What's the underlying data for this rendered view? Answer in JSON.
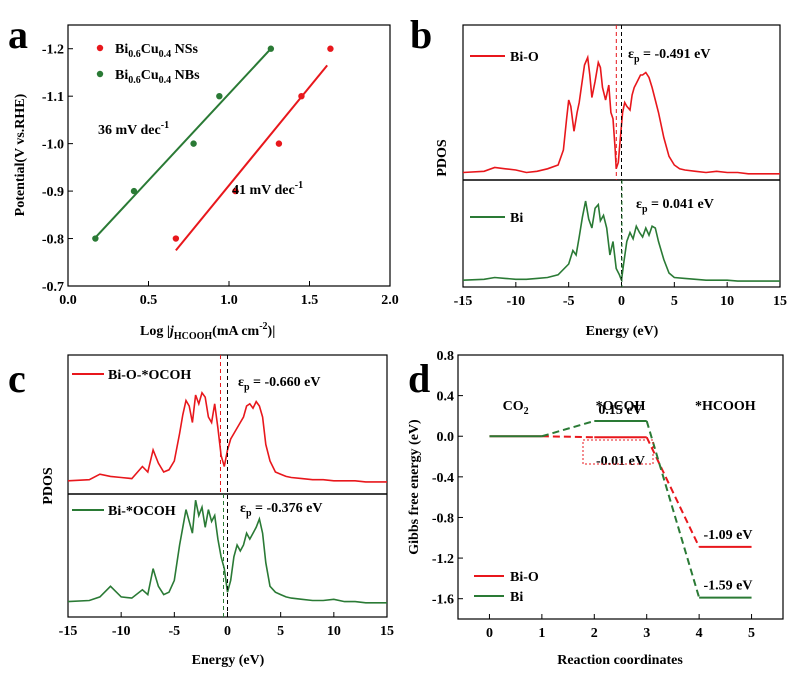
{
  "colors": {
    "red": "#e8171c",
    "green": "#2a7a35",
    "black": "#000000"
  },
  "panels": {
    "a": {
      "letter": "a",
      "chart_data": {
        "type": "scatter",
        "xlabel_prefix": "Log |",
        "xlabel_j": "j",
        "xlabel_sub": "HCOOH",
        "xlabel_units": "(mA cm",
        "xlabel_sup": "-2",
        "xlabel_end": ")|",
        "ylabel": "Potential(V vs.RHE)",
        "xlim": [
          0.0,
          2.0
        ],
        "ylim": [
          -0.7,
          -1.25
        ],
        "xticks": [
          "0.0",
          "0.5",
          "1.0",
          "1.5",
          "2.0"
        ],
        "xtick_values": [
          0.0,
          0.5,
          1.0,
          1.5,
          2.0
        ],
        "yticks": [
          "-1.2",
          "-1.1",
          "-1.0",
          "-0.9",
          "-0.8",
          "-0.7"
        ],
        "ytick_values": [
          -1.2,
          -1.1,
          -1.0,
          -0.9,
          -0.8,
          -0.7
        ],
        "series": [
          {
            "name_main": "Bi",
            "name_sub1": "0.6",
            "name_mid": "Cu",
            "name_sub2": "0.4",
            "name_end": " NSs",
            "color": "red",
            "x": [
              0.67,
              1.04,
              1.31,
              1.45,
              1.63
            ],
            "y": [
              -0.8,
              -0.9,
              -1.0,
              -1.1,
              -1.2
            ],
            "fit": {
              "x": [
                0.67,
                1.61
              ],
              "y": [
                -0.775,
                -1.165
              ]
            },
            "slope_label": "41 mV dec",
            "slope_sup": "-1"
          },
          {
            "name_main": "Bi",
            "name_sub1": "0.6",
            "name_mid": "Cu",
            "name_sub2": "0.4",
            "name_end": " NBs",
            "color": "green",
            "x": [
              0.17,
              0.41,
              0.78,
              0.94,
              1.26
            ],
            "y": [
              -0.8,
              -0.9,
              -1.0,
              -1.1,
              -1.2
            ],
            "fit": {
              "x": [
                0.17,
                1.26
              ],
              "y": [
                -0.802,
                -1.2
              ]
            },
            "slope_label": "36 mV dec",
            "slope_sup": "-1"
          }
        ]
      }
    },
    "b": {
      "letter": "b",
      "chart_data": {
        "type": "line",
        "xlabel": "Energy (eV)",
        "ylabel": "PDOS",
        "xlim": [
          -15,
          15
        ],
        "xticks": [
          "-15",
          "-10",
          "-5",
          "0",
          "5",
          "10",
          "15"
        ],
        "xtick_values": [
          -15,
          -10,
          -5,
          0,
          5,
          10,
          15
        ],
        "series": [
          {
            "name": "Bi-O",
            "color": "red",
            "ep_label": "ε",
            "ep_sub": "p",
            "ep_value": " = -0.491 eV",
            "ep_x": -0.491,
            "x": [
              -15,
              -13,
              -12,
              -11,
              -10,
              -9,
              -8,
              -7,
              -6,
              -5.5,
              -5.2,
              -5,
              -4.8,
              -4.5,
              -4.2,
              -4,
              -3.8,
              -3.5,
              -3.2,
              -3,
              -2.8,
              -2.5,
              -2.2,
              -2,
              -1.8,
              -1.5,
              -1.2,
              -1,
              -0.8,
              -0.6,
              -0.5,
              -0.3,
              -0.1,
              0.1,
              0.3,
              0.5,
              0.8,
              1,
              1.2,
              1.5,
              1.8,
              2,
              2.3,
              2.6,
              2.9,
              3.2,
              3.5,
              4,
              4.5,
              5,
              5.5,
              6,
              7,
              8,
              9,
              10,
              11,
              12,
              13,
              15
            ],
            "y": [
              0.02,
              0.03,
              0.06,
              0.05,
              0.04,
              0.02,
              0.03,
              0.05,
              0.08,
              0.2,
              0.45,
              0.6,
              0.55,
              0.35,
              0.5,
              0.58,
              0.7,
              0.88,
              0.94,
              0.8,
              0.62,
              0.75,
              0.9,
              0.86,
              0.7,
              0.6,
              0.72,
              0.5,
              0.45,
              0.2,
              0.05,
              0.1,
              0.3,
              0.5,
              0.58,
              0.55,
              0.52,
              0.64,
              0.7,
              0.75,
              0.8,
              0.8,
              0.82,
              0.78,
              0.7,
              0.6,
              0.5,
              0.3,
              0.15,
              0.08,
              0.05,
              0.04,
              0.03,
              0.02,
              0.03,
              0.02,
              0.02,
              0.01,
              0.01,
              0.01
            ]
          },
          {
            "name": "Bi",
            "color": "green",
            "ep_label": "ε",
            "ep_sub": "p",
            "ep_value": " = 0.041 eV",
            "ep_x": 0.041,
            "x": [
              -15,
              -13,
              -12,
              -11,
              -10,
              -9,
              -8,
              -7,
              -6,
              -5,
              -4.6,
              -4.3,
              -4,
              -3.7,
              -3.4,
              -3.1,
              -2.8,
              -2.5,
              -2.2,
              -2,
              -1.7,
              -1.4,
              -1.1,
              -0.8,
              -0.5,
              -0.2,
              0,
              0.2,
              0.5,
              0.8,
              1.1,
              1.4,
              1.7,
              2,
              2.3,
              2.6,
              2.9,
              3.2,
              3.5,
              4,
              4.5,
              5,
              6,
              7,
              8,
              9,
              10,
              11,
              12,
              13,
              15
            ],
            "y": [
              0.02,
              0.03,
              0.05,
              0.04,
              0.03,
              0.03,
              0.04,
              0.05,
              0.08,
              0.2,
              0.35,
              0.3,
              0.5,
              0.72,
              0.9,
              0.7,
              0.6,
              0.82,
              0.86,
              0.68,
              0.74,
              0.6,
              0.3,
              0.45,
              0.15,
              0.08,
              0.02,
              0.2,
              0.45,
              0.55,
              0.48,
              0.62,
              0.55,
              0.5,
              0.6,
              0.52,
              0.62,
              0.6,
              0.45,
              0.25,
              0.1,
              0.05,
              0.04,
              0.03,
              0.02,
              0.02,
              0.02,
              0.01,
              0.01,
              0.01,
              0.01
            ]
          }
        ]
      }
    },
    "c": {
      "letter": "c",
      "chart_data": {
        "type": "line",
        "xlabel": "Energy (eV)",
        "ylabel": "PDOS",
        "xlim": [
          -15,
          15
        ],
        "xticks": [
          "-15",
          "-10",
          "-5",
          "0",
          "5",
          "10",
          "15"
        ],
        "xtick_values": [
          -15,
          -10,
          -5,
          0,
          5,
          10,
          15
        ],
        "series": [
          {
            "name": "Bi-O-*OCOH",
            "color": "red",
            "ep_label": "ε",
            "ep_sub": "p",
            "ep_value": " = -0.660 eV",
            "ep_x": -0.66,
            "x": [
              -15,
              -13,
              -12,
              -11,
              -10,
              -9,
              -8,
              -7.5,
              -7,
              -6.5,
              -6,
              -5.5,
              -5,
              -4.5,
              -4.2,
              -3.9,
              -3.6,
              -3.3,
              -3,
              -2.7,
              -2.4,
              -2.1,
              -1.8,
              -1.5,
              -1.2,
              -0.9,
              -0.6,
              -0.3,
              0,
              0.3,
              0.6,
              0.9,
              1.2,
              1.5,
              1.8,
              2.1,
              2.4,
              2.7,
              3,
              3.3,
              3.6,
              4,
              4.5,
              5,
              5.5,
              6,
              7,
              8,
              9,
              10,
              11,
              12,
              13,
              15
            ],
            "y": [
              0.02,
              0.03,
              0.08,
              0.06,
              0.05,
              0.04,
              0.15,
              0.1,
              0.3,
              0.18,
              0.1,
              0.12,
              0.2,
              0.45,
              0.62,
              0.75,
              0.7,
              0.55,
              0.8,
              0.72,
              0.82,
              0.78,
              0.6,
              0.55,
              0.72,
              0.5,
              0.25,
              0.15,
              0.3,
              0.4,
              0.45,
              0.5,
              0.55,
              0.6,
              0.7,
              0.72,
              0.68,
              0.74,
              0.7,
              0.6,
              0.35,
              0.2,
              0.1,
              0.08,
              0.06,
              0.05,
              0.04,
              0.03,
              0.03,
              0.02,
              0.02,
              0.02,
              0.01,
              0.01
            ]
          },
          {
            "name": "Bi-*OCOH",
            "color": "green",
            "ep_label": "ε",
            "ep_sub": "p",
            "ep_value": " = -0.376 eV",
            "ep_x": -0.376,
            "x": [
              -15,
              -13,
              -12,
              -11,
              -10,
              -9,
              -8,
              -7.5,
              -7,
              -6.5,
              -6,
              -5.5,
              -5,
              -4.5,
              -4.2,
              -3.9,
              -3.6,
              -3.3,
              -3,
              -2.7,
              -2.4,
              -2.1,
              -1.8,
              -1.5,
              -1.2,
              -0.9,
              -0.6,
              -0.3,
              0,
              0.3,
              0.6,
              0.9,
              1.2,
              1.5,
              1.8,
              2.1,
              2.4,
              2.7,
              3,
              3.3,
              3.6,
              4,
              4.5,
              5,
              5.5,
              6,
              7,
              8,
              9,
              10,
              11,
              12,
              13,
              15
            ],
            "y": [
              0.02,
              0.03,
              0.06,
              0.15,
              0.06,
              0.05,
              0.12,
              0.08,
              0.3,
              0.15,
              0.08,
              0.1,
              0.2,
              0.5,
              0.65,
              0.8,
              0.7,
              0.6,
              0.88,
              0.75,
              0.82,
              0.65,
              0.8,
              0.7,
              0.75,
              0.55,
              0.4,
              0.3,
              0.1,
              0.2,
              0.4,
              0.5,
              0.45,
              0.5,
              0.6,
              0.55,
              0.6,
              0.65,
              0.72,
              0.6,
              0.35,
              0.15,
              0.1,
              0.08,
              0.06,
              0.05,
              0.04,
              0.03,
              0.03,
              0.04,
              0.02,
              0.02,
              0.01,
              0.01
            ]
          }
        ]
      }
    },
    "d": {
      "letter": "d",
      "chart_data": {
        "type": "line",
        "xlabel": "Reaction coordinates",
        "ylabel": "Gibbs free energy (eV)",
        "xlim": [
          -0.6,
          5.6
        ],
        "ylim": [
          -1.8,
          0.8
        ],
        "xticks": [
          "0",
          "1",
          "2",
          "3",
          "4",
          "5"
        ],
        "xtick_values": [
          0,
          1,
          2,
          3,
          4,
          5
        ],
        "yticks": [
          "0.8",
          "0.4",
          "0.0",
          "-0.4",
          "-0.8",
          "-1.2",
          "-1.6"
        ],
        "ytick_values": [
          0.8,
          0.4,
          0.0,
          -0.4,
          -0.8,
          -1.2,
          -1.6
        ],
        "stage_labels": [
          {
            "text": "CO",
            "sub": "2",
            "x": 0.5
          },
          {
            "text": "*OCOH",
            "sub": "",
            "x": 2.5
          },
          {
            "text": "*HCOOH",
            "sub": "",
            "x": 4.5
          }
        ],
        "series": [
          {
            "name": "Bi-O",
            "color": "red",
            "levels": [
              {
                "x1": 0,
                "x2": 1,
                "y": 0.0
              },
              {
                "x1": 2,
                "x2": 3,
                "y": -0.01
              },
              {
                "x1": 4,
                "x2": 5,
                "y": -1.09
              }
            ],
            "labels": [
              "-0.01 eV",
              "-1.09 eV"
            ]
          },
          {
            "name": "Bi",
            "color": "green",
            "levels": [
              {
                "x1": 0,
                "x2": 1,
                "y": 0.0
              },
              {
                "x1": 2,
                "x2": 3,
                "y": 0.15
              },
              {
                "x1": 4,
                "x2": 5,
                "y": -1.59
              }
            ],
            "labels": [
              "0.15 eV",
              "-1.59 eV"
            ]
          }
        ]
      }
    }
  }
}
